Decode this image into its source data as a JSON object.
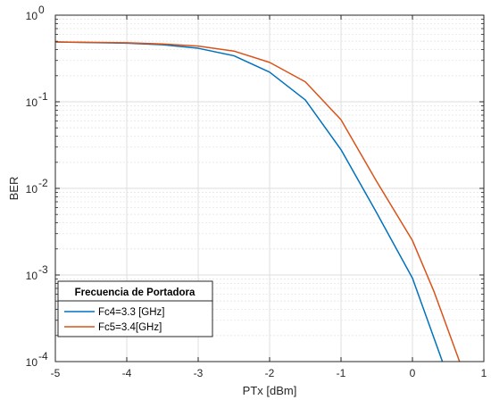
{
  "chart_data": {
    "type": "line",
    "xlabel": "PTx [dBm]",
    "ylabel": "BER",
    "y_scale": "log",
    "xlim": [
      -5,
      1
    ],
    "ylim": [
      0.0001,
      1
    ],
    "x_ticks": [
      -5,
      -4,
      -3,
      -2,
      -1,
      0,
      1
    ],
    "y_ticks": [
      {
        "value": 1,
        "base": "10",
        "exp": "0"
      },
      {
        "value": 0.1,
        "base": "10",
        "exp": "-1"
      },
      {
        "value": 0.01,
        "base": "10",
        "exp": "-2"
      },
      {
        "value": 0.001,
        "base": "10",
        "exp": "-3"
      },
      {
        "value": 0.0001,
        "base": "10",
        "exp": "-4"
      }
    ],
    "grid": true,
    "minor_grid": true,
    "legend": {
      "title": "Frecuencia de Portadora",
      "location": "bottom-left"
    },
    "series": [
      {
        "name": "Fc4=3.3 [GHz]",
        "color": "#0072BD",
        "x": [
          -5,
          -4,
          -3.5,
          -3,
          -2.5,
          -2,
          -1.5,
          -1,
          -0.5,
          0,
          0.42
        ],
        "y": [
          0.49,
          0.475,
          0.455,
          0.415,
          0.34,
          0.22,
          0.105,
          0.028,
          0.0052,
          0.00092,
          0.0001
        ]
      },
      {
        "name": "Fc5=3.4[GHz]",
        "color": "#D95319",
        "x": [
          -5,
          -4,
          -3.5,
          -3,
          -2.5,
          -2,
          -1.5,
          -1,
          -0.5,
          0,
          0.3,
          0.66
        ],
        "y": [
          0.49,
          0.48,
          0.465,
          0.44,
          0.385,
          0.285,
          0.17,
          0.062,
          0.012,
          0.0025,
          0.00065,
          0.0001
        ]
      }
    ]
  }
}
